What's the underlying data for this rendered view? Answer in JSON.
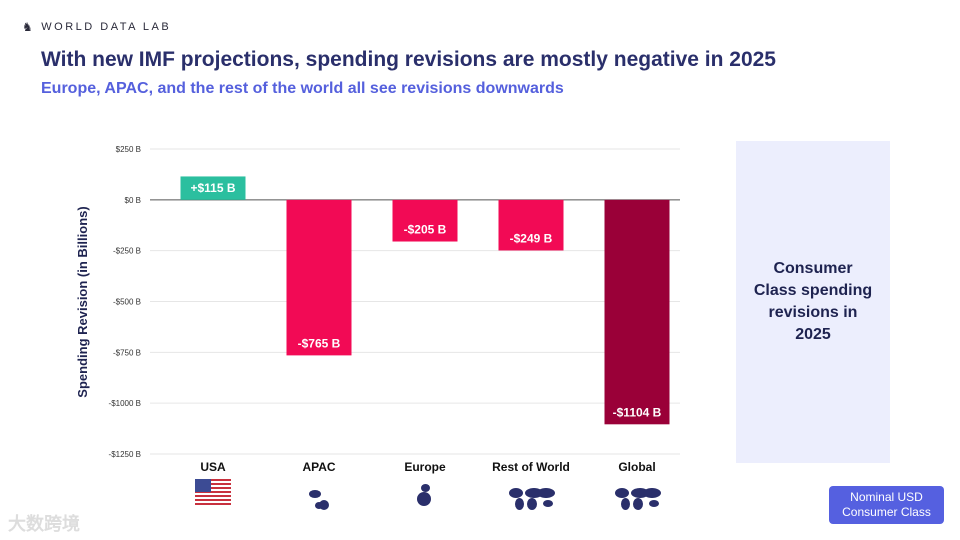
{
  "brand": "WORLD DATA LAB",
  "title": "With new IMF projections, spending revisions are mostly negative in 2025",
  "subtitle": "Europe, APAC, and the rest of the world all see revisions downwards",
  "side_text": "Consumer Class spending revisions in 2025",
  "badge": "Nominal USD Consumer Class",
  "watermark": "大数跨境",
  "chart_data": {
    "type": "bar",
    "categories": [
      "USA",
      "APAC",
      "Europe",
      "Rest of World",
      "Global"
    ],
    "values": [
      115,
      -765,
      -205,
      -249,
      -1104
    ],
    "labels": [
      "+$115 B",
      "-$765 B",
      "-$205 B",
      "-$249 B",
      "-$1104 B"
    ],
    "colors": [
      "#2bbf9f",
      "#f20a55",
      "#f20a55",
      "#f20a55",
      "#9a0038"
    ],
    "ylabel": "Spending Revision (in Billions)",
    "ylim": [
      -1250,
      250
    ],
    "yticks": [
      250,
      0,
      -250,
      -500,
      -750,
      -1000,
      -1250
    ],
    "ytick_labels": [
      "$250 B",
      "$0 B",
      "-$250 B",
      "-$500 B",
      "-$750 B",
      "-$1000 B",
      "-$1250 B"
    ],
    "grid": true
  }
}
